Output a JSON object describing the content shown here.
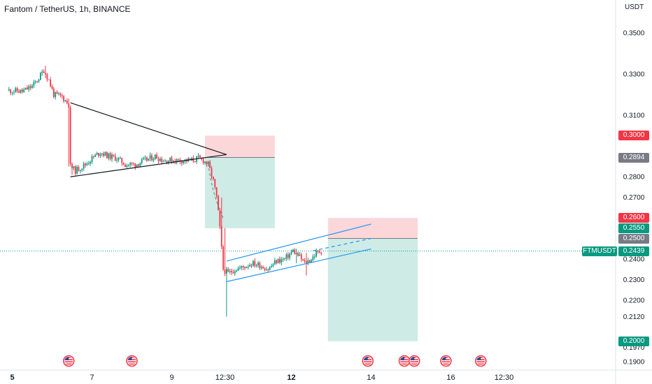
{
  "header": {
    "symbol_title": "Fantom / TetherUS, 1h, BINANCE"
  },
  "chart_data": {
    "type": "candlestick",
    "symbol": "FTMUSDT",
    "exchange": "BINANCE",
    "interval": "1h",
    "y_axis_title": "USDT",
    "ylim": [
      0.186,
      0.366
    ],
    "y_ticks": [
      "0.3500",
      "0.3300",
      "0.3100",
      "0.2800",
      "0.2700",
      "0.2400",
      "0.2300",
      "0.2200",
      "0.2120",
      "0.2000",
      "0.1970",
      "0.1900"
    ],
    "x_ticks": [
      {
        "label": "5",
        "t": 2,
        "bold": true
      },
      {
        "label": "7",
        "t": 50,
        "bold": false
      },
      {
        "label": "9",
        "t": 98,
        "bold": false
      },
      {
        "label": "12:30",
        "t": 130,
        "bold": false
      },
      {
        "label": "12",
        "t": 170,
        "bold": true
      },
      {
        "label": "14",
        "t": 218,
        "bold": false
      },
      {
        "label": "16",
        "t": 266,
        "bold": false
      },
      {
        "label": "12:30",
        "t": 298,
        "bold": false
      }
    ],
    "price_tags": [
      {
        "label": "0.3000",
        "value": 0.3,
        "color": "#f23645"
      },
      {
        "label": "0.2894",
        "value": 0.2894,
        "color": "#787b86"
      },
      {
        "label": "0.2600",
        "value": 0.26,
        "color": "#f23645"
      },
      {
        "label": "0.2550",
        "value": 0.255,
        "color": "#089981"
      },
      {
        "label": "0.2500",
        "value": 0.25,
        "color": "#787b86"
      },
      {
        "label": "0.2439",
        "value": 0.2439,
        "color": "#089981"
      },
      {
        "label": "0.2000",
        "value": 0.2,
        "color": "#089981"
      }
    ],
    "ticker_label": "FTMUSDT",
    "last_price": 0.2439,
    "candle_colors": {
      "up": "#089981",
      "down": "#f23645"
    },
    "path": [
      [
        0,
        0.322
      ],
      [
        8,
        0.3215
      ],
      [
        14,
        0.324
      ],
      [
        18,
        0.328
      ],
      [
        21,
        0.332
      ],
      [
        24,
        0.327
      ],
      [
        27,
        0.32
      ],
      [
        32,
        0.319
      ],
      [
        36,
        0.315
      ],
      [
        37,
        0.285
      ],
      [
        40,
        0.283
      ],
      [
        46,
        0.286
      ],
      [
        50,
        0.289
      ],
      [
        55,
        0.292
      ],
      [
        60,
        0.29
      ],
      [
        65,
        0.289
      ],
      [
        70,
        0.286
      ],
      [
        76,
        0.286
      ],
      [
        82,
        0.288
      ],
      [
        88,
        0.29
      ],
      [
        93,
        0.288
      ],
      [
        98,
        0.288
      ],
      [
        104,
        0.288
      ],
      [
        110,
        0.288
      ],
      [
        114,
        0.289
      ],
      [
        117,
        0.288
      ],
      [
        120,
        0.286
      ],
      [
        123,
        0.278
      ],
      [
        125,
        0.27
      ],
      [
        127,
        0.255
      ],
      [
        129,
        0.235
      ],
      [
        132,
        0.233
      ],
      [
        136,
        0.235
      ],
      [
        141,
        0.236
      ],
      [
        146,
        0.238
      ],
      [
        151,
        0.237
      ],
      [
        156,
        0.235
      ],
      [
        161,
        0.239
      ],
      [
        166,
        0.24
      ],
      [
        171,
        0.244
      ],
      [
        175,
        0.241
      ],
      [
        178,
        0.238
      ],
      [
        182,
        0.24
      ],
      [
        185,
        0.243
      ],
      [
        188,
        0.2439
      ]
    ],
    "spikes": [
      {
        "t": 36,
        "high": 0.318,
        "low": 0.285
      },
      {
        "t": 38,
        "high": 0.287,
        "low": 0.281
      },
      {
        "t": 22,
        "high": 0.334,
        "low": 0.328
      },
      {
        "t": 131,
        "high": 0.236,
        "low": 0.212
      },
      {
        "t": 130,
        "high": 0.255,
        "low": 0.233
      },
      {
        "t": 128,
        "high": 0.27,
        "low": 0.245
      },
      {
        "t": 179,
        "high": 0.243,
        "low": 0.232
      },
      {
        "t": 173,
        "high": 0.245,
        "low": 0.238
      }
    ],
    "positions": [
      {
        "type": "short",
        "t_start": 118,
        "t_end": 160,
        "entry": 0.2894,
        "stop": 0.3,
        "target": 0.255
      },
      {
        "type": "short",
        "t_start": 192,
        "t_end": 246,
        "entry": 0.25,
        "stop": 0.26,
        "target": 0.2
      }
    ],
    "triangle": {
      "color": "#131722",
      "upper": [
        [
          37,
          0.316
        ],
        [
          131,
          0.2908
        ]
      ],
      "lower": [
        [
          37,
          0.28
        ],
        [
          131,
          0.2908
        ]
      ]
    },
    "channel": {
      "color": "#2196f3",
      "lines": [
        [
          [
            131,
            0.239
          ],
          [
            218,
            0.257
          ]
        ],
        [
          [
            131,
            0.229
          ],
          [
            218,
            0.2449
          ]
        ]
      ],
      "projection": [
        [
          183,
          0.244
        ],
        [
          218,
          0.25
        ]
      ]
    },
    "projected_drop": {
      "from": [
        120,
        0.2865
      ],
      "to": [
        129,
        0.26
      ]
    },
    "event_markers_t": [
      36,
      74,
      216,
      238,
      244,
      263,
      284
    ]
  }
}
